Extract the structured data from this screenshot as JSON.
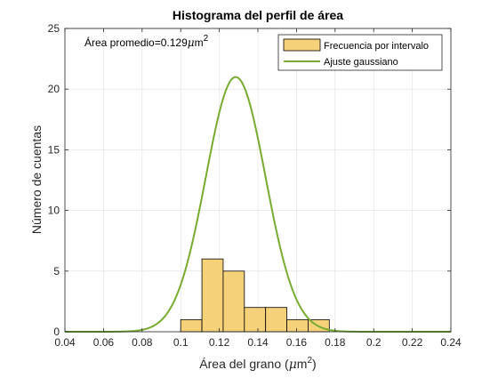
{
  "chart_data": {
    "type": "bar",
    "title": "Histograma del perfil de área",
    "xlabel": "Área del grano (",
    "xlabel_unit_mu": "μ",
    "xlabel_unit_m": "m",
    "xlabel_unit_exp": "2",
    "xlabel_close": ")",
    "ylabel": "Número de cuentas",
    "xlim": [
      0.04,
      0.24
    ],
    "ylim": [
      0,
      25
    ],
    "xticks": [
      "0.04",
      "0.06",
      "0.08",
      "0.1",
      "0.12",
      "0.14",
      "0.16",
      "0.18",
      "0.2",
      "0.22",
      "0.24"
    ],
    "xtick_values": [
      0.04,
      0.06,
      0.08,
      0.1,
      0.12,
      0.14,
      0.16,
      0.18,
      0.2,
      0.22,
      0.24
    ],
    "yticks": [
      "0",
      "5",
      "10",
      "15",
      "20",
      "25"
    ],
    "ytick_values": [
      0,
      5,
      10,
      15,
      20,
      25
    ],
    "grid": true,
    "legend_position": "top-right",
    "annotation": {
      "prefix": "Área promedio=0.129",
      "mu": "μ",
      "unit": "m",
      "exp": "2"
    },
    "series": [
      {
        "name": "Frecuencia por intervalo",
        "kind": "histogram",
        "color": "#f5d27a",
        "edge_color": "#000000",
        "bins": [
          {
            "x0": 0.1,
            "x1": 0.111,
            "count": 1
          },
          {
            "x0": 0.111,
            "x1": 0.122,
            "count": 6
          },
          {
            "x0": 0.122,
            "x1": 0.133,
            "count": 5
          },
          {
            "x0": 0.133,
            "x1": 0.144,
            "count": 2
          },
          {
            "x0": 0.144,
            "x1": 0.155,
            "count": 2
          },
          {
            "x0": 0.155,
            "x1": 0.166,
            "count": 1
          },
          {
            "x0": 0.166,
            "x1": 0.177,
            "count": 1
          }
        ]
      },
      {
        "name": "Ajuste gaussiano",
        "kind": "gaussian",
        "color": "#77ac30",
        "mean": 0.1285,
        "amplitude": 21,
        "sigma": 0.0155
      }
    ]
  }
}
